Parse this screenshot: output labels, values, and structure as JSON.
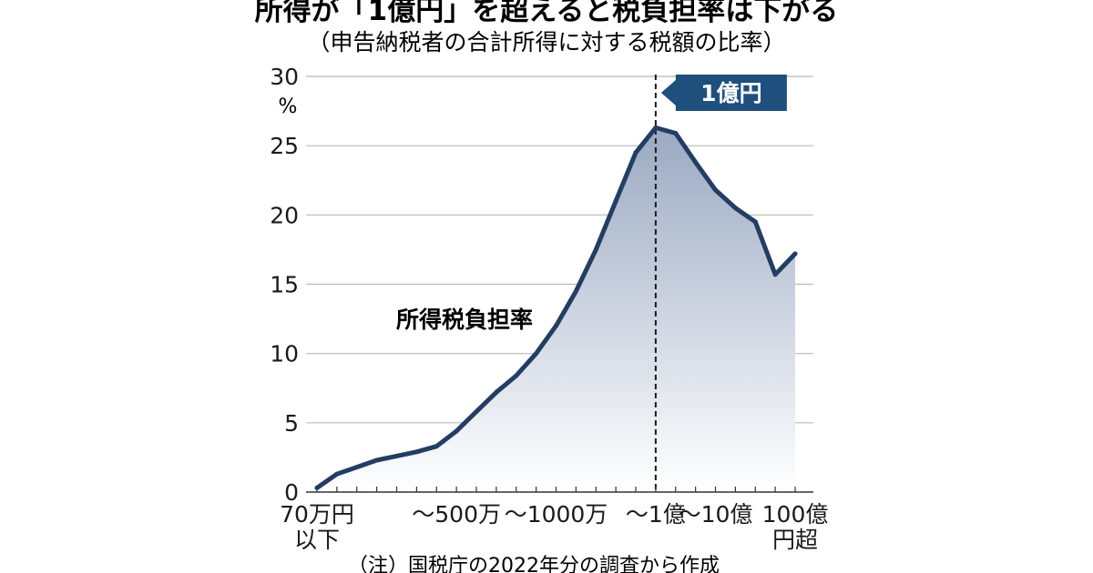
{
  "chart_data": {
    "type": "area",
    "title": "所得が「1億円」を超えると税負担率は下がる",
    "subtitle": "（申告納税者の合計所得に対する税額の比率）",
    "ylabel_unit": "%",
    "ylim": [
      0,
      30
    ],
    "yticks": [
      "0",
      "5",
      "10",
      "15",
      "20",
      "25",
      "30"
    ],
    "grid": true,
    "xtick_labels": [
      {
        "index": 0,
        "lines": [
          "70万円",
          "以下"
        ]
      },
      {
        "index": 7,
        "lines": [
          "～500万"
        ]
      },
      {
        "index": 12,
        "lines": [
          "～1000万"
        ]
      },
      {
        "index": 17,
        "lines": [
          "～1億"
        ]
      },
      {
        "index": 20,
        "lines": [
          "～10億"
        ]
      },
      {
        "index": 24,
        "lines": [
          "100億",
          "円超"
        ]
      }
    ],
    "series": [
      {
        "name": "所得税負担率",
        "values": [
          0.3,
          1.3,
          1.8,
          2.3,
          2.6,
          2.9,
          3.3,
          4.4,
          5.8,
          7.2,
          8.4,
          10.0,
          12.0,
          14.5,
          17.5,
          21.0,
          24.5,
          26.3,
          25.9,
          23.8,
          21.8,
          20.5,
          19.5,
          15.7,
          17.2
        ]
      }
    ],
    "annotations": [
      {
        "text": "1億円",
        "index": 17,
        "style": "dashed-line-callout"
      }
    ],
    "note": "（注）国税庁の2022年分の調査から作成"
  },
  "colors": {
    "line": "#233d63",
    "fill_top": "#9aa9c2",
    "fill_bottom": "#ffffff",
    "grid": "#b8b8b8",
    "axis": "#333333",
    "callout_bg": "#1f4f7c",
    "text": "#1a1a1a"
  }
}
